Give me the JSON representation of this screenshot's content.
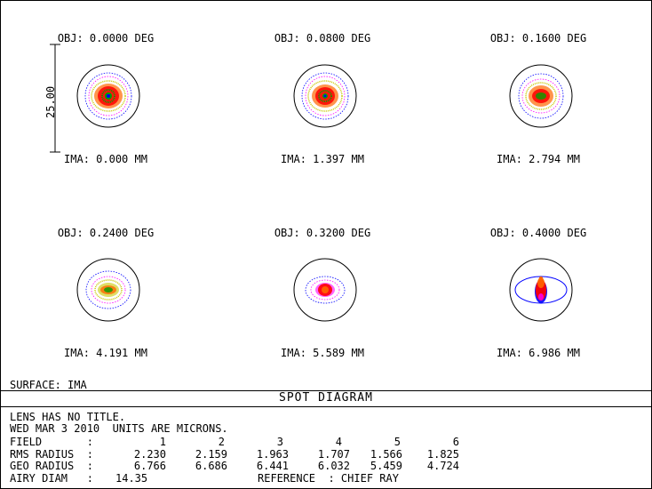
{
  "scale_bar": "25.00",
  "fields": [
    {
      "obj": "OBJ: 0.0000 DEG",
      "ima": "IMA: 0.000 MM"
    },
    {
      "obj": "OBJ: 0.0800 DEG",
      "ima": "IMA: 1.397 MM"
    },
    {
      "obj": "OBJ: 0.1600 DEG",
      "ima": "IMA: 2.794 MM"
    },
    {
      "obj": "OBJ: 0.2400 DEG",
      "ima": "IMA: 4.191 MM"
    },
    {
      "obj": "OBJ: 0.3200 DEG",
      "ima": "IMA: 5.589 MM"
    },
    {
      "obj": "OBJ: 0.4000 DEG",
      "ima": "IMA: 6.986 MM"
    }
  ],
  "surface": "SURFACE: IMA",
  "title": "SPOT DIAGRAM",
  "info": {
    "line1": "LENS HAS NO TITLE.",
    "line2": "WED MAR 3 2010  UNITS ARE MICRONS.",
    "field_label": "FIELD       :",
    "rms_label": "RMS RADIUS  :",
    "geo_label": "GEO RADIUS  :",
    "airy_label": "AIRY DIAM   :",
    "airy_value": "14.35",
    "reference": "REFERENCE  : CHIEF RAY",
    "field_numbers": [
      "1",
      "2",
      "3",
      "4",
      "5",
      "6"
    ],
    "rms": [
      "2.230",
      "2.159",
      "1.963",
      "1.707",
      "1.566",
      "1.825"
    ],
    "geo": [
      "6.766",
      "6.686",
      "6.441",
      "6.032",
      "5.459",
      "4.724"
    ]
  },
  "colors": {
    "wave1": "#0000ff",
    "wave2": "#00a000",
    "wave3": "#ff0000",
    "wave4": "#ff00ff",
    "wave5": "#c8c800"
  }
}
